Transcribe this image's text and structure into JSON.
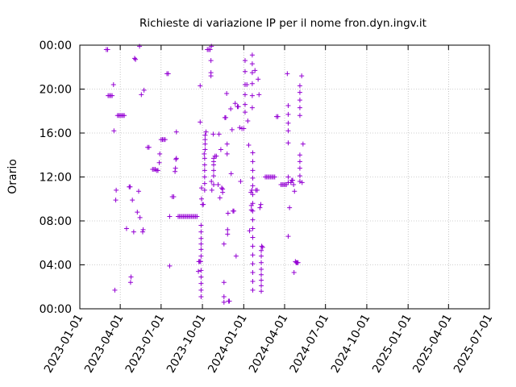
{
  "chart_data": {
    "type": "scatter",
    "title": "Richieste di variazione IP per il nome fron.dyn.ingv.it",
    "xlabel": "",
    "ylabel": "Orario",
    "xlim": [
      "2023-01-01",
      "2025-07-01"
    ],
    "ylim": [
      0,
      24
    ],
    "x_ticks": [
      "2023-01-01",
      "2023-04-01",
      "2023-07-01",
      "2023-10-01",
      "2024-01-01",
      "2024-04-01",
      "2024-07-01",
      "2024-10-01",
      "2025-01-01",
      "2025-04-01",
      "2025-07-01"
    ],
    "y_ticks": [
      "00:00",
      "04:00",
      "08:00",
      "12:00",
      "16:00",
      "20:00",
      "00:00"
    ],
    "y_tick_values": [
      0,
      4,
      8,
      12,
      16,
      20,
      24
    ],
    "grid": true,
    "marker": "plus",
    "color": "#9400d3",
    "series": [
      {
        "points": [
          [
            "2023-03-01",
            23.6
          ],
          [
            "2023-03-04",
            23.6
          ],
          [
            "2023-03-05",
            19.4
          ],
          [
            "2023-03-08",
            19.4
          ],
          [
            "2023-03-11",
            19.4
          ],
          [
            "2023-03-14",
            19.4
          ],
          [
            "2023-03-17",
            20.4
          ],
          [
            "2023-03-18",
            16.2
          ],
          [
            "2023-03-20",
            1.7
          ],
          [
            "2023-03-22",
            9.9
          ],
          [
            "2023-03-23",
            10.8
          ],
          [
            "2023-03-26",
            17.6
          ],
          [
            "2023-03-29",
            17.6
          ],
          [
            "2023-04-01",
            17.6
          ],
          [
            "2023-04-04",
            17.6
          ],
          [
            "2023-04-07",
            17.6
          ],
          [
            "2023-04-10",
            17.6
          ],
          [
            "2023-04-15",
            7.3
          ],
          [
            "2023-04-21",
            11.1
          ],
          [
            "2023-04-23",
            11.1
          ],
          [
            "2023-04-24",
            2.4
          ],
          [
            "2023-04-25",
            2.9
          ],
          [
            "2023-04-28",
            9.9
          ],
          [
            "2023-05-01",
            7.0
          ],
          [
            "2023-05-03",
            22.8
          ],
          [
            "2023-05-05",
            22.7
          ],
          [
            "2023-05-09",
            8.8
          ],
          [
            "2023-05-12",
            10.7
          ],
          [
            "2023-05-14",
            23.9
          ],
          [
            "2023-05-15",
            8.3
          ],
          [
            "2023-05-18",
            19.5
          ],
          [
            "2023-05-21",
            7.0
          ],
          [
            "2023-05-22",
            7.2
          ],
          [
            "2023-05-24",
            19.9
          ],
          [
            "2023-06-01",
            14.7
          ],
          [
            "2023-06-04",
            14.7
          ],
          [
            "2023-06-12",
            12.7
          ],
          [
            "2023-06-15",
            12.7
          ],
          [
            "2023-06-18",
            12.7
          ],
          [
            "2023-06-21",
            12.6
          ],
          [
            "2023-06-24",
            12.6
          ],
          [
            "2023-06-27",
            13.3
          ],
          [
            "2023-06-28",
            14.1
          ],
          [
            "2023-07-01",
            15.4
          ],
          [
            "2023-07-04",
            15.4
          ],
          [
            "2023-07-07",
            15.4
          ],
          [
            "2023-07-10",
            15.4
          ],
          [
            "2023-07-14",
            21.4
          ],
          [
            "2023-07-17",
            21.4
          ],
          [
            "2023-07-20",
            8.4
          ],
          [
            "2023-07-20",
            3.9
          ],
          [
            "2023-07-26",
            10.2
          ],
          [
            "2023-07-29",
            10.2
          ],
          [
            "2023-08-01",
            12.5
          ],
          [
            "2023-08-02",
            12.8
          ],
          [
            "2023-08-03",
            13.6
          ],
          [
            "2023-08-04",
            16.1
          ],
          [
            "2023-08-04",
            13.7
          ],
          [
            "2023-08-08",
            8.4
          ],
          [
            "2023-08-11",
            8.4
          ],
          [
            "2023-08-14",
            8.4
          ],
          [
            "2023-08-17",
            8.4
          ],
          [
            "2023-08-20",
            8.4
          ],
          [
            "2023-08-23",
            8.4
          ],
          [
            "2023-08-26",
            8.4
          ],
          [
            "2023-08-29",
            8.4
          ],
          [
            "2023-09-01",
            8.4
          ],
          [
            "2023-09-04",
            8.4
          ],
          [
            "2023-09-07",
            8.4
          ],
          [
            "2023-09-10",
            8.4
          ],
          [
            "2023-09-13",
            8.4
          ],
          [
            "2023-09-16",
            8.4
          ],
          [
            "2023-09-19",
            8.4
          ],
          [
            "2023-09-22",
            3.4
          ],
          [
            "2023-09-23",
            4.3
          ],
          [
            "2023-09-25",
            4.3
          ],
          [
            "2023-09-26",
            17.0
          ],
          [
            "2023-09-26",
            20.3
          ],
          [
            "2023-09-27",
            4.3
          ],
          [
            "2023-09-28",
            3.5
          ],
          [
            "2023-09-28",
            2.9
          ],
          [
            "2023-09-28",
            2.3
          ],
          [
            "2023-09-28",
            1.7
          ],
          [
            "2023-09-28",
            1.1
          ],
          [
            "2023-09-28",
            4.8
          ],
          [
            "2023-09-28",
            5.4
          ],
          [
            "2023-09-28",
            5.9
          ],
          [
            "2023-09-28",
            6.4
          ],
          [
            "2023-09-28",
            7.0
          ],
          [
            "2023-09-28",
            7.6
          ],
          [
            "2023-09-29",
            11.0
          ],
          [
            "2023-09-29",
            10.0
          ],
          [
            "2023-10-01",
            9.5
          ],
          [
            "2023-10-03",
            9.5
          ],
          [
            "2023-10-05",
            14.1
          ],
          [
            "2023-10-06",
            13.7
          ],
          [
            "2023-10-06",
            13.1
          ],
          [
            "2023-10-06",
            12.6
          ],
          [
            "2023-10-06",
            12.0
          ],
          [
            "2023-10-06",
            11.4
          ],
          [
            "2023-10-06",
            10.8
          ],
          [
            "2023-10-07",
            15.8
          ],
          [
            "2023-10-07",
            15.4
          ],
          [
            "2023-10-07",
            15.0
          ],
          [
            "2023-10-07",
            14.5
          ],
          [
            "2023-10-09",
            16.1
          ],
          [
            "2023-10-12",
            23.6
          ],
          [
            "2023-10-15",
            23.6
          ],
          [
            "2023-10-18",
            23.6
          ],
          [
            "2023-10-20",
            22.6
          ],
          [
            "2023-10-20",
            21.5
          ],
          [
            "2023-10-20",
            21.2
          ],
          [
            "2023-10-21",
            23.9
          ],
          [
            "2023-10-21",
            11.6
          ],
          [
            "2023-10-22",
            10.8
          ],
          [
            "2023-10-25",
            15.9
          ],
          [
            "2023-10-26",
            13.7
          ],
          [
            "2023-10-26",
            13.4
          ],
          [
            "2023-10-26",
            13.1
          ],
          [
            "2023-10-26",
            12.6
          ],
          [
            "2023-10-26",
            12.1
          ],
          [
            "2023-10-26",
            11.3
          ],
          [
            "2023-10-29",
            13.9
          ],
          [
            "2023-11-01",
            13.9
          ],
          [
            "2023-11-05",
            11.3
          ],
          [
            "2023-11-07",
            15.9
          ],
          [
            "2023-11-09",
            10.1
          ],
          [
            "2023-11-11",
            14.5
          ],
          [
            "2023-11-13",
            11.0
          ],
          [
            "2023-11-15",
            10.9
          ],
          [
            "2023-11-15",
            10.6
          ],
          [
            "2023-11-18",
            2.4
          ],
          [
            "2023-11-18",
            1.1
          ],
          [
            "2023-11-18",
            0.6
          ],
          [
            "2023-11-18",
            5.9
          ],
          [
            "2023-11-20",
            17.4
          ],
          [
            "2023-11-22",
            17.4
          ],
          [
            "2023-11-24",
            19.6
          ],
          [
            "2023-11-25",
            14.1
          ],
          [
            "2023-11-25",
            15.0
          ],
          [
            "2023-11-26",
            7.2
          ],
          [
            "2023-11-26",
            6.8
          ],
          [
            "2023-11-27",
            8.7
          ],
          [
            "2023-11-28",
            0.7
          ],
          [
            "2023-11-30",
            0.7
          ],
          [
            "2023-12-03",
            18.2
          ],
          [
            "2023-12-04",
            12.3
          ],
          [
            "2023-12-06",
            16.3
          ],
          [
            "2023-12-08",
            8.9
          ],
          [
            "2023-12-10",
            8.9
          ],
          [
            "2023-12-13",
            18.7
          ],
          [
            "2023-12-15",
            4.8
          ],
          [
            "2023-12-18",
            18.4
          ],
          [
            "2023-12-20",
            18.4
          ],
          [
            "2023-12-23",
            16.5
          ],
          [
            "2023-12-25",
            11.6
          ],
          [
            "2023-12-28",
            16.4
          ],
          [
            "2024-01-01",
            16.4
          ],
          [
            "2024-01-04",
            22.6
          ],
          [
            "2024-01-04",
            21.6
          ],
          [
            "2024-01-04",
            20.4
          ],
          [
            "2024-01-04",
            19.5
          ],
          [
            "2024-01-04",
            18.6
          ],
          [
            "2024-01-04",
            17.9
          ],
          [
            "2024-01-08",
            20.4
          ],
          [
            "2024-01-10",
            17.1
          ],
          [
            "2024-01-12",
            14.9
          ],
          [
            "2024-01-14",
            7.1
          ],
          [
            "2024-01-17",
            10.6
          ],
          [
            "2024-01-18",
            9.4
          ],
          [
            "2024-01-18",
            9.0
          ],
          [
            "2024-01-19",
            10.8
          ],
          [
            "2024-01-20",
            23.1
          ],
          [
            "2024-01-20",
            22.3
          ],
          [
            "2024-01-20",
            21.5
          ],
          [
            "2024-01-20",
            20.5
          ],
          [
            "2024-01-20",
            19.4
          ],
          [
            "2024-01-20",
            18.3
          ],
          [
            "2024-01-21",
            14.2
          ],
          [
            "2024-01-21",
            13.4
          ],
          [
            "2024-01-21",
            12.6
          ],
          [
            "2024-01-21",
            11.9
          ],
          [
            "2024-01-21",
            11.2
          ],
          [
            "2024-01-21",
            10.4
          ],
          [
            "2024-01-21",
            9.6
          ],
          [
            "2024-01-21",
            8.9
          ],
          [
            "2024-01-21",
            8.1
          ],
          [
            "2024-01-21",
            7.3
          ],
          [
            "2024-01-21",
            6.5
          ],
          [
            "2024-01-21",
            5.7
          ],
          [
            "2024-01-21",
            4.9
          ],
          [
            "2024-01-21",
            4.1
          ],
          [
            "2024-01-21",
            3.3
          ],
          [
            "2024-01-21",
            2.5
          ],
          [
            "2024-01-21",
            1.7
          ],
          [
            "2024-01-26",
            21.7
          ],
          [
            "2024-01-28",
            10.8
          ],
          [
            "2024-01-31",
            10.8
          ],
          [
            "2024-02-02",
            20.9
          ],
          [
            "2024-02-04",
            19.5
          ],
          [
            "2024-02-06",
            9.2
          ],
          [
            "2024-02-08",
            9.5
          ],
          [
            "2024-02-10",
            5.7
          ],
          [
            "2024-02-12",
            5.6
          ],
          [
            "2024-02-09",
            5.3
          ],
          [
            "2024-02-09",
            4.8
          ],
          [
            "2024-02-09",
            4.2
          ],
          [
            "2024-02-09",
            3.6
          ],
          [
            "2024-02-09",
            3.1
          ],
          [
            "2024-02-09",
            2.6
          ],
          [
            "2024-02-09",
            2.1
          ],
          [
            "2024-02-09",
            1.6
          ],
          [
            "2024-02-18",
            12.0
          ],
          [
            "2024-02-21",
            12.0
          ],
          [
            "2024-02-24",
            12.0
          ],
          [
            "2024-02-27",
            12.0
          ],
          [
            "2024-03-01",
            12.0
          ],
          [
            "2024-03-04",
            12.0
          ],
          [
            "2024-03-07",
            12.0
          ],
          [
            "2024-03-10",
            12.0
          ],
          [
            "2024-03-14",
            17.5
          ],
          [
            "2024-03-17",
            17.5
          ],
          [
            "2024-03-24",
            11.3
          ],
          [
            "2024-03-27",
            11.3
          ],
          [
            "2024-03-30",
            11.3
          ],
          [
            "2024-04-02",
            11.3
          ],
          [
            "2024-04-05",
            11.3
          ],
          [
            "2024-04-07",
            21.4
          ],
          [
            "2024-04-09",
            18.5
          ],
          [
            "2024-04-09",
            17.7
          ],
          [
            "2024-04-09",
            16.9
          ],
          [
            "2024-04-09",
            16.2
          ],
          [
            "2024-04-09",
            15.1
          ],
          [
            "2024-04-09",
            12.0
          ],
          [
            "2024-04-09",
            11.5
          ],
          [
            "2024-04-09",
            6.6
          ],
          [
            "2024-04-12",
            9.2
          ],
          [
            "2024-04-15",
            11.5
          ],
          [
            "2024-04-17",
            11.7
          ],
          [
            "2024-04-19",
            11.7
          ],
          [
            "2024-04-21",
            11.3
          ],
          [
            "2024-04-22",
            3.3
          ],
          [
            "2024-04-23",
            10.7
          ],
          [
            "2024-04-25",
            4.3
          ],
          [
            "2024-04-27",
            4.2
          ],
          [
            "2024-04-29",
            4.2
          ],
          [
            "2024-05-01",
            4.2
          ],
          [
            "2024-05-05",
            20.3
          ],
          [
            "2024-05-05",
            19.7
          ],
          [
            "2024-05-05",
            19.0
          ],
          [
            "2024-05-05",
            18.3
          ],
          [
            "2024-05-05",
            17.6
          ],
          [
            "2024-05-05",
            14.0
          ],
          [
            "2024-05-05",
            13.4
          ],
          [
            "2024-05-05",
            12.8
          ],
          [
            "2024-05-05",
            12.1
          ],
          [
            "2024-05-05",
            11.6
          ],
          [
            "2024-05-09",
            21.2
          ],
          [
            "2024-05-10",
            11.5
          ],
          [
            "2024-05-12",
            15.0
          ]
        ]
      }
    ]
  }
}
